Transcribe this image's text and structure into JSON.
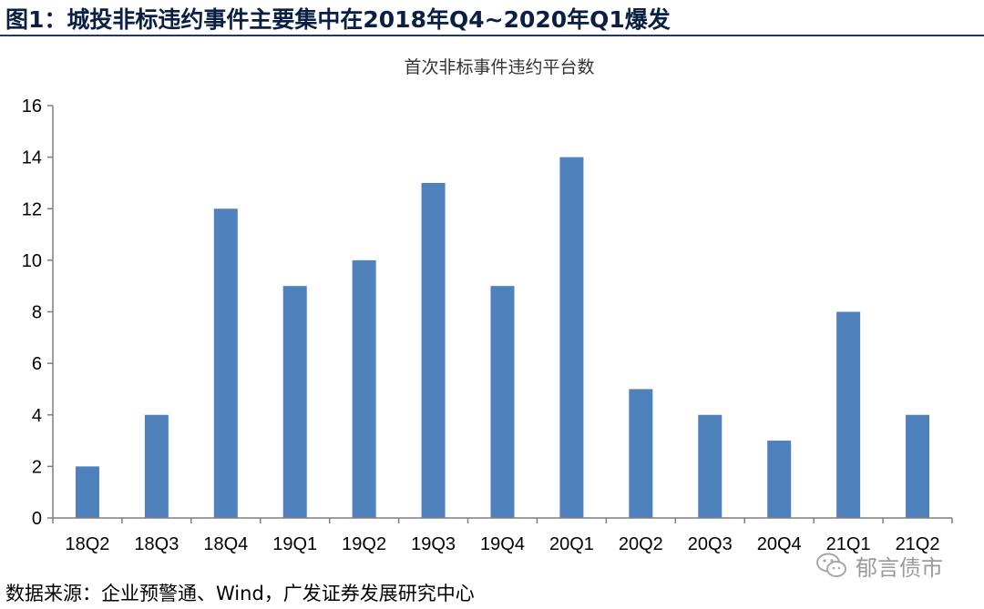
{
  "figure": {
    "title": "图1：城投非标违约事件主要集中在2018年Q4~2020年Q1爆发",
    "source": "数据来源：企业预警通、Wind，广发证券发展研究中心",
    "watermark_text": "郁言债市",
    "watermark_icon": "wechat-icon"
  },
  "colors": {
    "bar": "#4f81bd",
    "title": "#0a1f44",
    "rule": "#1f3864",
    "axis": "#7f7f7f"
  },
  "chart_data": {
    "type": "bar",
    "title": "首次非标事件违约平台数",
    "xlabel": "",
    "ylabel": "",
    "categories": [
      "18Q2",
      "18Q3",
      "18Q4",
      "19Q1",
      "19Q2",
      "19Q3",
      "19Q4",
      "20Q1",
      "20Q2",
      "20Q3",
      "20Q4",
      "21Q1",
      "21Q2"
    ],
    "values": [
      2,
      4,
      12,
      9,
      10,
      13,
      9,
      14,
      5,
      4,
      3,
      8,
      4
    ],
    "yticks": [
      "0",
      "2",
      "4",
      "6",
      "8",
      "10",
      "12",
      "14",
      "16"
    ],
    "ylim": [
      0,
      16
    ],
    "grid": false,
    "legend": "none"
  }
}
